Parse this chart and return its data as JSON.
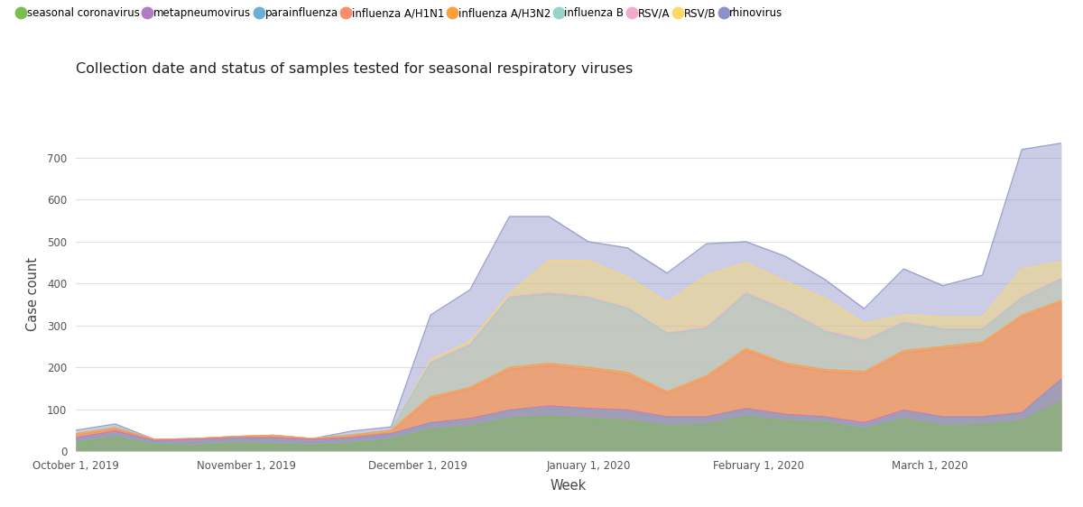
{
  "title": "Collection date and status of samples tested for seasonal respiratory viruses",
  "xlabel": "Week",
  "ylabel": "Case count",
  "ylim": [
    0,
    750
  ],
  "yticks": [
    0,
    100,
    200,
    300,
    400,
    500,
    600,
    700
  ],
  "background_color": "#ffffff",
  "legend_entries": [
    "seasonal coronavirus",
    "metapneumovirus",
    "parainfluenza",
    "influenza A/H1N1",
    "influenza A/H3N2",
    "influenza B",
    "RSV/A",
    "RSV/B",
    "rhinovirus"
  ],
  "legend_colors": [
    "#7abf4e",
    "#b07cc6",
    "#6baed6",
    "#fc8d6a",
    "#fd9f3a",
    "#96d4ca",
    "#f4aacc",
    "#fdd96a",
    "#8c91c8"
  ],
  "x_labels": [
    "October 1, 2019",
    "November 1, 2019",
    "December 1, 2019",
    "January 1, 2020",
    "February 1, 2020",
    "March 1, 2020"
  ],
  "n_weeks": 26,
  "x_tick_positions": [
    0,
    4.33,
    8.67,
    13.0,
    17.33,
    21.67
  ],
  "series_order": [
    "rhinovirus",
    "RSV_B",
    "RSV_A",
    "influenza_B",
    "influenza_A_H3N2",
    "influenza_A_H1N1",
    "metapneumovirus",
    "parainfluenza",
    "seasonal_coronavirus"
  ],
  "series": {
    "seasonal_coronavirus": [
      20,
      33,
      15,
      12,
      18,
      16,
      13,
      18,
      28,
      52,
      58,
      78,
      82,
      78,
      72,
      60,
      62,
      82,
      72,
      68,
      52,
      76,
      60,
      62,
      72,
      118
    ],
    "parainfluenza": [
      28,
      42,
      22,
      22,
      28,
      28,
      22,
      28,
      38,
      65,
      72,
      95,
      102,
      98,
      92,
      78,
      78,
      98,
      82,
      78,
      62,
      92,
      78,
      78,
      88,
      168
    ],
    "metapneumovirus": [
      32,
      48,
      25,
      28,
      32,
      32,
      28,
      32,
      42,
      68,
      78,
      98,
      108,
      102,
      98,
      82,
      82,
      102,
      88,
      82,
      68,
      98,
      82,
      82,
      92,
      172
    ],
    "influenza_A_H1N1": [
      38,
      52,
      28,
      28,
      32,
      35,
      28,
      35,
      45,
      125,
      148,
      195,
      205,
      195,
      182,
      138,
      175,
      240,
      205,
      190,
      185,
      235,
      245,
      255,
      320,
      355
    ],
    "influenza_A_H3N2": [
      42,
      55,
      28,
      30,
      35,
      38,
      30,
      38,
      50,
      130,
      152,
      200,
      210,
      200,
      188,
      142,
      180,
      245,
      210,
      195,
      190,
      240,
      250,
      260,
      325,
      360
    ],
    "influenza_B": [
      42,
      58,
      28,
      30,
      35,
      38,
      30,
      40,
      50,
      210,
      252,
      365,
      375,
      365,
      340,
      280,
      292,
      375,
      335,
      285,
      262,
      305,
      290,
      290,
      365,
      410
    ],
    "RSV_A": [
      42,
      58,
      28,
      30,
      35,
      38,
      30,
      40,
      50,
      212,
      255,
      368,
      378,
      368,
      342,
      282,
      295,
      378,
      338,
      288,
      265,
      308,
      292,
      292,
      368,
      412
    ],
    "RSV_B": [
      42,
      58,
      28,
      30,
      35,
      38,
      30,
      40,
      50,
      218,
      262,
      375,
      455,
      455,
      415,
      355,
      420,
      450,
      405,
      365,
      305,
      325,
      320,
      320,
      435,
      452
    ],
    "rhinovirus": [
      50,
      65,
      28,
      30,
      35,
      38,
      30,
      48,
      58,
      325,
      385,
      560,
      560,
      500,
      485,
      425,
      495,
      500,
      465,
      410,
      340,
      435,
      395,
      420,
      720,
      735
    ]
  }
}
